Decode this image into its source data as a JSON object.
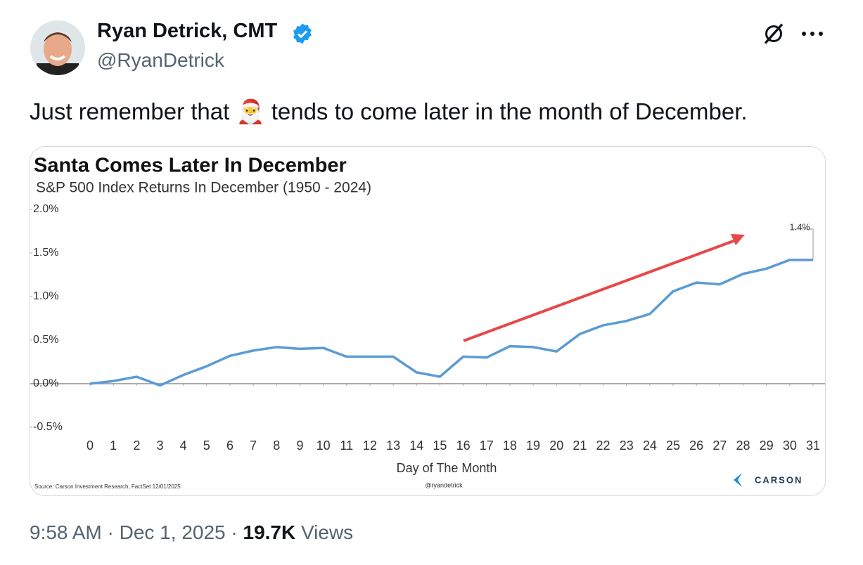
{
  "author": {
    "name": "Ryan Detrick, CMT",
    "handle": "@RyanDetrick"
  },
  "tweet": {
    "text": "Just remember that 🎅 tends to come later in the month of December."
  },
  "footer": {
    "timestamp": "9:58 AM · Dec 1, 2025 ·",
    "views_count": "19.7K",
    "views_label": "Views"
  },
  "chart_data": {
    "type": "line",
    "title": "Santa Comes Later In December",
    "subtitle": "S&P 500 Index Returns In December (1950 - 2024)",
    "x_label": "Day of The Month",
    "source": "Source: Carson Investment Research, FactSet 12/01/2025",
    "credit": "@ryandetrick",
    "logo": "CARSON",
    "x": [
      0,
      1,
      2,
      3,
      4,
      5,
      6,
      7,
      8,
      9,
      10,
      11,
      12,
      13,
      14,
      15,
      16,
      17,
      18,
      19,
      20,
      21,
      22,
      23,
      24,
      25,
      26,
      27,
      28,
      29,
      30,
      31
    ],
    "series": [
      {
        "name": "S&P 500",
        "color": "#5b9bd5",
        "values": [
          0,
          0.03,
          0.08,
          -0.02,
          0.1,
          0.2,
          0.32,
          0.38,
          0.42,
          0.4,
          0.41,
          0.31,
          0.31,
          0.31,
          0.13,
          0.08,
          0.31,
          0.3,
          0.43,
          0.42,
          0.37,
          0.57,
          0.67,
          0.72,
          0.8,
          1.06,
          1.16,
          1.14,
          1.26,
          1.32,
          1.42,
          1.42
        ],
        "value_labels": [
          null,
          null,
          null,
          null,
          null,
          null,
          null,
          null,
          null,
          null,
          null,
          null,
          null,
          null,
          null,
          null,
          null,
          null,
          null,
          null,
          null,
          null,
          null,
          null,
          null,
          null,
          null,
          null,
          null,
          null,
          null,
          "1.4%"
        ]
      }
    ],
    "xlim": [
      0,
      31
    ],
    "xticks": [
      0,
      1,
      2,
      3,
      4,
      5,
      6,
      7,
      8,
      9,
      10,
      11,
      12,
      13,
      14,
      15,
      16,
      17,
      18,
      19,
      20,
      21,
      22,
      23,
      24,
      25,
      26,
      27,
      28,
      29,
      30,
      31
    ],
    "ylim": [
      -0.5,
      2.0
    ],
    "yticks": [
      {
        "value": -0.5,
        "label": "-0.5%"
      },
      {
        "value": 0,
        "label": "0.0%"
      },
      {
        "value": 0.5,
        "label": "0.5%"
      },
      {
        "value": 1.0,
        "label": "1.0%"
      },
      {
        "value": 1.5,
        "label": "1.5%"
      },
      {
        "value": 2.0,
        "label": "2.0%"
      }
    ],
    "grid": false
  }
}
